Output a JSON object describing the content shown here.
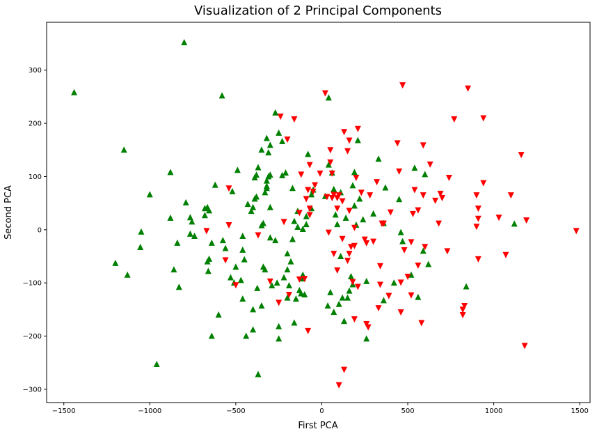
{
  "chart_data": {
    "type": "scatter",
    "title": "Visualization of 2 Principal Components",
    "xlabel": "First PCA",
    "ylabel": "Second PCA",
    "xlim": [
      -1600,
      1560
    ],
    "ylim": [
      -325,
      390
    ],
    "xticks": [
      -1500,
      -1000,
      -500,
      0,
      500,
      1000,
      1500
    ],
    "yticks": [
      -300,
      -200,
      -100,
      0,
      100,
      200,
      300
    ],
    "grid": false,
    "series": [
      {
        "marker": "triangle-up",
        "color": "#008000",
        "points": [
          [
            -1440,
            258
          ],
          [
            -800,
            352
          ],
          [
            -1150,
            150
          ],
          [
            -1000,
            66
          ],
          [
            -880,
            108
          ],
          [
            -1050,
            -4
          ],
          [
            -1055,
            -33
          ],
          [
            -1200,
            -63
          ],
          [
            -1130,
            -85
          ],
          [
            -960,
            -253
          ],
          [
            -880,
            22
          ],
          [
            -860,
            -75
          ],
          [
            -840,
            -25
          ],
          [
            -830,
            -108
          ],
          [
            -790,
            51
          ],
          [
            -765,
            23
          ],
          [
            -755,
            15
          ],
          [
            -765,
            -8
          ],
          [
            -740,
            -12
          ],
          [
            -680,
            40
          ],
          [
            -665,
            42
          ],
          [
            -680,
            27
          ],
          [
            -655,
            36
          ],
          [
            -620,
            84
          ],
          [
            -600,
            -160
          ],
          [
            -640,
            -25
          ],
          [
            -665,
            -60
          ],
          [
            -655,
            -55
          ],
          [
            -660,
            -78
          ],
          [
            -640,
            -200
          ],
          [
            -580,
            252
          ],
          [
            -575,
            -20
          ],
          [
            -560,
            -35
          ],
          [
            -530,
            -90
          ],
          [
            -520,
            72
          ],
          [
            -490,
            112
          ],
          [
            -510,
            -100
          ],
          [
            -500,
            -70
          ],
          [
            -470,
            -95
          ],
          [
            -460,
            -130
          ],
          [
            -460,
            -12
          ],
          [
            -460,
            -38
          ],
          [
            -450,
            -56
          ],
          [
            -440,
            -200
          ],
          [
            -430,
            48
          ],
          [
            -410,
            35
          ],
          [
            -400,
            42
          ],
          [
            -400,
            -150
          ],
          [
            -400,
            -188
          ],
          [
            -390,
            58
          ],
          [
            -380,
            62
          ],
          [
            -390,
            98
          ],
          [
            -380,
            103
          ],
          [
            -375,
            -110
          ],
          [
            -370,
            -272
          ],
          [
            -370,
            117
          ],
          [
            -350,
            150
          ],
          [
            -350,
            8
          ],
          [
            -340,
            12
          ],
          [
            -340,
            -70
          ],
          [
            -330,
            -75
          ],
          [
            -350,
            -143
          ],
          [
            -330,
            70
          ],
          [
            -320,
            78
          ],
          [
            -320,
            82
          ],
          [
            -320,
            92
          ],
          [
            -310,
            100
          ],
          [
            -300,
            103
          ],
          [
            -310,
            145
          ],
          [
            -300,
            159
          ],
          [
            -320,
            172
          ],
          [
            -300,
            42
          ],
          [
            -300,
            -15
          ],
          [
            -290,
            -105
          ],
          [
            -270,
            -20
          ],
          [
            -270,
            220
          ],
          [
            -250,
            182
          ],
          [
            -260,
            -100
          ],
          [
            -250,
            -182
          ],
          [
            -250,
            -205
          ],
          [
            -230,
            166
          ],
          [
            -230,
            102
          ],
          [
            -210,
            107
          ],
          [
            -220,
            -90
          ],
          [
            -200,
            -75
          ],
          [
            -200,
            -45
          ],
          [
            -200,
            -128
          ],
          [
            -190,
            -105
          ],
          [
            -170,
            78
          ],
          [
            -170,
            -18
          ],
          [
            -160,
            16
          ],
          [
            -160,
            -175
          ],
          [
            -150,
            -130
          ],
          [
            -140,
            5
          ],
          [
            -140,
            35
          ],
          [
            -130,
            -114
          ],
          [
            -120,
            -120
          ],
          [
            -110,
            -85
          ],
          [
            -110,
            -92
          ],
          [
            -110,
            1
          ],
          [
            -100,
            -122
          ],
          [
            -90,
            10
          ],
          [
            -90,
            25
          ],
          [
            -80,
            142
          ],
          [
            -60,
            40
          ],
          [
            -60,
            66
          ],
          [
            -50,
            75
          ],
          [
            20,
            63
          ],
          [
            35,
            -143
          ],
          [
            40,
            248
          ],
          [
            40,
            122
          ],
          [
            50,
            -118
          ],
          [
            60,
            107
          ],
          [
            70,
            -155
          ],
          [
            70,
            76
          ],
          [
            80,
            28
          ],
          [
            90,
            10
          ],
          [
            100,
            -140
          ],
          [
            110,
            -50
          ],
          [
            110,
            70
          ],
          [
            120,
            -128
          ],
          [
            130,
            -172
          ],
          [
            140,
            22
          ],
          [
            150,
            -128
          ],
          [
            160,
            -115
          ],
          [
            170,
            -88
          ],
          [
            180,
            -103
          ],
          [
            180,
            83
          ],
          [
            190,
            45
          ],
          [
            190,
            108
          ],
          [
            200,
            9
          ],
          [
            210,
            168
          ],
          [
            220,
            58
          ],
          [
            240,
            19
          ],
          [
            260,
            -97
          ],
          [
            260,
            -205
          ],
          [
            300,
            30
          ],
          [
            330,
            133
          ],
          [
            360,
            -133
          ],
          [
            360,
            12
          ],
          [
            370,
            79
          ],
          [
            450,
            57
          ],
          [
            460,
            -5
          ],
          [
            470,
            -22
          ],
          [
            520,
            -85
          ],
          [
            540,
            116
          ],
          [
            560,
            -127
          ],
          [
            590,
            -40
          ],
          [
            620,
            -65
          ],
          [
            600,
            104
          ],
          [
            840,
            -107
          ],
          [
            1120,
            11
          ],
          [
            420,
            -100
          ],
          [
            -180,
            -60
          ]
        ]
      },
      {
        "marker": "triangle-down",
        "color": "#ff0000",
        "points": [
          [
            -670,
            -2
          ],
          [
            -560,
            -57
          ],
          [
            -540,
            78
          ],
          [
            -540,
            9
          ],
          [
            -500,
            -104
          ],
          [
            -370,
            -10
          ],
          [
            -300,
            -97
          ],
          [
            -250,
            -137
          ],
          [
            -240,
            213
          ],
          [
            -220,
            15
          ],
          [
            -200,
            170
          ],
          [
            -190,
            -122
          ],
          [
            -160,
            208
          ],
          [
            -130,
            32
          ],
          [
            -130,
            -93
          ],
          [
            -120,
            104
          ],
          [
            -100,
            -92
          ],
          [
            -90,
            58
          ],
          [
            -80,
            75
          ],
          [
            -80,
            -190
          ],
          [
            -70,
            122
          ],
          [
            -70,
            40
          ],
          [
            -70,
            28
          ],
          [
            -50,
            72
          ],
          [
            -40,
            84
          ],
          [
            20,
            257
          ],
          [
            30,
            62
          ],
          [
            40,
            -5
          ],
          [
            50,
            150
          ],
          [
            50,
            127
          ],
          [
            60,
            106
          ],
          [
            60,
            60
          ],
          [
            70,
            66
          ],
          [
            70,
            -45
          ],
          [
            90,
            40
          ],
          [
            90,
            60
          ],
          [
            90,
            -76
          ],
          [
            100,
            65
          ],
          [
            100,
            -292
          ],
          [
            120,
            54
          ],
          [
            120,
            -17
          ],
          [
            130,
            -263
          ],
          [
            130,
            184
          ],
          [
            150,
            148
          ],
          [
            150,
            -58
          ],
          [
            160,
            36
          ],
          [
            160,
            168
          ],
          [
            160,
            -45
          ],
          [
            170,
            -32
          ],
          [
            180,
            -98
          ],
          [
            190,
            -30
          ],
          [
            190,
            4
          ],
          [
            190,
            -168
          ],
          [
            200,
            98
          ],
          [
            210,
            -107
          ],
          [
            210,
            190
          ],
          [
            230,
            70
          ],
          [
            250,
            -18
          ],
          [
            260,
            -25
          ],
          [
            260,
            -177
          ],
          [
            270,
            -183
          ],
          [
            280,
            65
          ],
          [
            300,
            -22
          ],
          [
            320,
            90
          ],
          [
            330,
            -147
          ],
          [
            340,
            -103
          ],
          [
            340,
            -68
          ],
          [
            350,
            12
          ],
          [
            360,
            12
          ],
          [
            390,
            -124
          ],
          [
            400,
            33
          ],
          [
            440,
            163
          ],
          [
            450,
            110
          ],
          [
            460,
            -155
          ],
          [
            460,
            -99
          ],
          [
            470,
            272
          ],
          [
            480,
            -38
          ],
          [
            500,
            -88
          ],
          [
            520,
            -123
          ],
          [
            520,
            -23
          ],
          [
            540,
            75
          ],
          [
            560,
            -67
          ],
          [
            560,
            37
          ],
          [
            580,
            -175
          ],
          [
            590,
            159
          ],
          [
            590,
            65
          ],
          [
            600,
            -32
          ],
          [
            630,
            123
          ],
          [
            660,
            55
          ],
          [
            680,
            12
          ],
          [
            690,
            68
          ],
          [
            700,
            60
          ],
          [
            730,
            -40
          ],
          [
            740,
            98
          ],
          [
            770,
            208
          ],
          [
            820,
            -160
          ],
          [
            820,
            -150
          ],
          [
            830,
            -143
          ],
          [
            850,
            266
          ],
          [
            900,
            65
          ],
          [
            900,
            6
          ],
          [
            910,
            40
          ],
          [
            910,
            21
          ],
          [
            910,
            -55
          ],
          [
            940,
            88
          ],
          [
            940,
            210
          ],
          [
            1030,
            23
          ],
          [
            1070,
            -47
          ],
          [
            1100,
            65
          ],
          [
            1160,
            141
          ],
          [
            1180,
            -218
          ],
          [
            1190,
            18
          ],
          [
            1480,
            -2
          ],
          [
            530,
            30
          ],
          [
            -10,
            106
          ]
        ]
      }
    ]
  }
}
